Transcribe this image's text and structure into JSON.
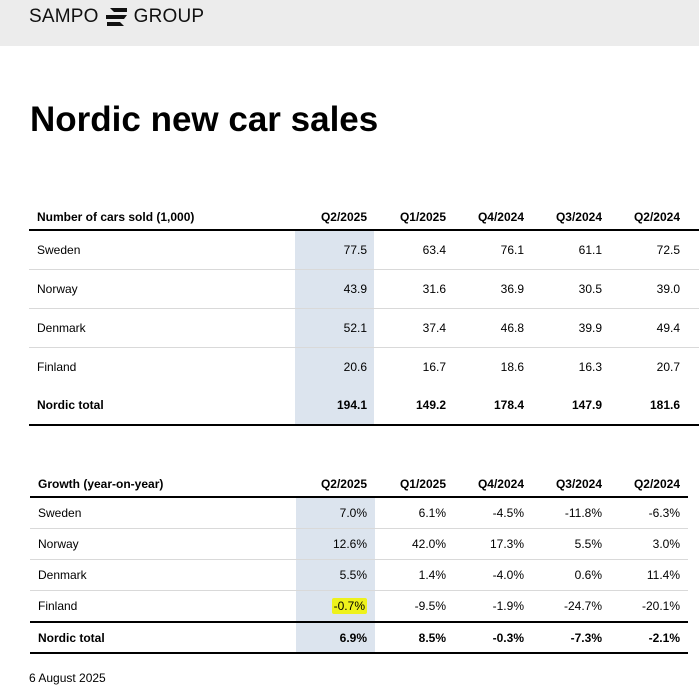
{
  "header": {
    "logo_left": "SAMPO",
    "logo_right": "GROUP",
    "logo_icon": "sampo-s-logo-icon"
  },
  "page_title": "Nordic new car sales",
  "sales_table": {
    "columns": [
      "Number of cars sold (1,000)",
      "Q2/2025",
      "Q1/2025",
      "Q4/2024",
      "Q3/2024",
      "Q2/2024"
    ],
    "rows": [
      {
        "label": "Sweden",
        "values": [
          "77.5",
          "63.4",
          "76.1",
          "61.1",
          "72.5"
        ]
      },
      {
        "label": "Norway",
        "values": [
          "43.9",
          "31.6",
          "36.9",
          "30.5",
          "39.0"
        ]
      },
      {
        "label": "Denmark",
        "values": [
          "52.1",
          "37.4",
          "46.8",
          "39.9",
          "49.4"
        ]
      },
      {
        "label": "Finland",
        "values": [
          "20.6",
          "16.7",
          "18.6",
          "16.3",
          "20.7"
        ]
      }
    ],
    "total": {
      "label": "Nordic total",
      "values": [
        "194.1",
        "149.2",
        "178.4",
        "147.9",
        "181.6"
      ]
    }
  },
  "growth_table": {
    "columns": [
      "Growth (year-on-year)",
      "Q2/2025",
      "Q1/2025",
      "Q4/2024",
      "Q3/2024",
      "Q2/2024"
    ],
    "rows": [
      {
        "label": "Sweden",
        "values": [
          "7.0%",
          "6.1%",
          "-4.5%",
          "-11.8%",
          "-6.3%"
        ]
      },
      {
        "label": "Norway",
        "values": [
          "12.6%",
          "42.0%",
          "17.3%",
          "5.5%",
          "3.0%"
        ]
      },
      {
        "label": "Denmark",
        "values": [
          "5.5%",
          "1.4%",
          "-4.0%",
          "0.6%",
          "11.4%"
        ]
      },
      {
        "label": "Finland",
        "values": [
          "-0.7%",
          "-9.5%",
          "-1.9%",
          "-24.7%",
          "-20.1%"
        ]
      }
    ],
    "total": {
      "label": "Nordic total",
      "values": [
        "6.9%",
        "8.5%",
        "-0.3%",
        "-7.3%",
        "-2.1%"
      ]
    }
  },
  "colors": {
    "header_bg": "#ececec",
    "column_highlight": "#dce4ee",
    "marker_highlight": "#eef21c"
  },
  "footer": {
    "date": "6 August 2025"
  }
}
